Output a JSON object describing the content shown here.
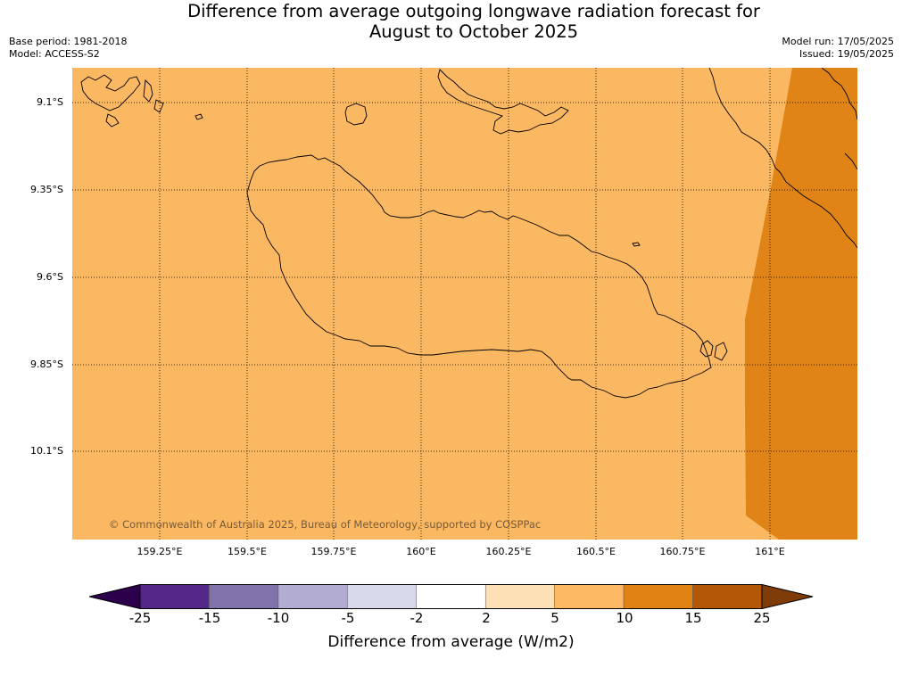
{
  "title": {
    "line1": "Difference from average outgoing longwave radiation forecast for",
    "line2": "August to October 2025"
  },
  "meta": {
    "base_period": "Base period: 1981-2018",
    "model": "Model: ACCESS-S2",
    "model_run": "Model run: 17/05/2025",
    "issued": "Issued: 19/05/2025"
  },
  "map": {
    "lat_labels": [
      "9.1°S",
      "9.35°S",
      "9.6°S",
      "9.85°S",
      "10.1°S"
    ],
    "lon_labels": [
      "159.25°E",
      "159.5°E",
      "159.75°E",
      "160°E",
      "160.25°E",
      "160.5°E",
      "160.75°E",
      "161°E"
    ],
    "copyright": "© Commonwealth of Australia 2025, Bureau of Meteorology, supported by COSPPac",
    "fill_colors": {
      "base": "#fbb862",
      "high": "#e08418"
    }
  },
  "colorbar": {
    "ticks": [
      "-25",
      "-15",
      "-10",
      "-5",
      "-2",
      "2",
      "5",
      "10",
      "15",
      "25"
    ],
    "colors": [
      "#2d004b",
      "#542788",
      "#8073ac",
      "#b2abd2",
      "#d8daeb",
      "#ffffff",
      "#fee0b6",
      "#fdb863",
      "#e08214",
      "#b35806",
      "#7f3b08"
    ],
    "label": "Difference from average (W/m2)"
  }
}
